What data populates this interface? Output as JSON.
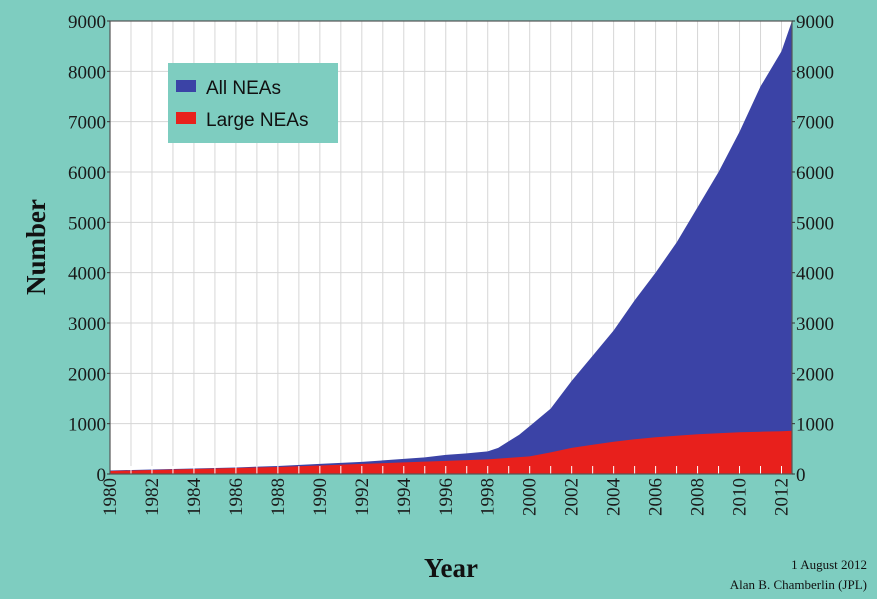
{
  "chart_data": {
    "type": "area",
    "xlabel": "Year",
    "ylabel": "Number",
    "xlim": [
      1980,
      2012.5
    ],
    "ylim": [
      0,
      9000
    ],
    "x_ticks": [
      "1980",
      "1982",
      "1984",
      "1986",
      "1988",
      "1990",
      "1992",
      "1994",
      "1996",
      "1998",
      "2000",
      "2002",
      "2004",
      "2006",
      "2008",
      "2010",
      "2012"
    ],
    "y_ticks": [
      "0",
      "1000",
      "2000",
      "3000",
      "4000",
      "5000",
      "6000",
      "7000",
      "8000",
      "9000"
    ],
    "grid": true,
    "legend_position": "top-left",
    "series": [
      {
        "name": "All NEAs",
        "color": "#3b43a6",
        "x": [
          1980,
          1982,
          1984,
          1986,
          1988,
          1990,
          1992,
          1994,
          1995,
          1996,
          1997,
          1998,
          1998.5,
          1999,
          1999.5,
          2000,
          2001,
          2002,
          2003,
          2004,
          2005,
          2006,
          2007,
          2008,
          2009,
          2010,
          2011,
          2012,
          2012.5
        ],
        "y": [
          70,
          90,
          110,
          130,
          160,
          200,
          240,
          300,
          330,
          380,
          410,
          450,
          520,
          650,
          780,
          950,
          1300,
          1850,
          2350,
          2850,
          3450,
          4000,
          4600,
          5300,
          6000,
          6800,
          7700,
          8400,
          9000
        ]
      },
      {
        "name": "Large NEAs",
        "color": "#e8201c",
        "x": [
          1980,
          1982,
          1984,
          1986,
          1988,
          1990,
          1992,
          1994,
          1996,
          1998,
          1999,
          2000,
          2001,
          2002,
          2003,
          2004,
          2005,
          2006,
          2007,
          2008,
          2009,
          2010,
          2011,
          2012,
          2012.5
        ],
        "y": [
          60,
          80,
          100,
          120,
          140,
          170,
          200,
          230,
          260,
          290,
          320,
          350,
          430,
          520,
          580,
          640,
          690,
          730,
          760,
          790,
          810,
          830,
          840,
          850,
          860
        ]
      }
    ],
    "annotations": [
      "1 August 2012",
      "Alan B. Chamberlin (JPL)"
    ]
  }
}
